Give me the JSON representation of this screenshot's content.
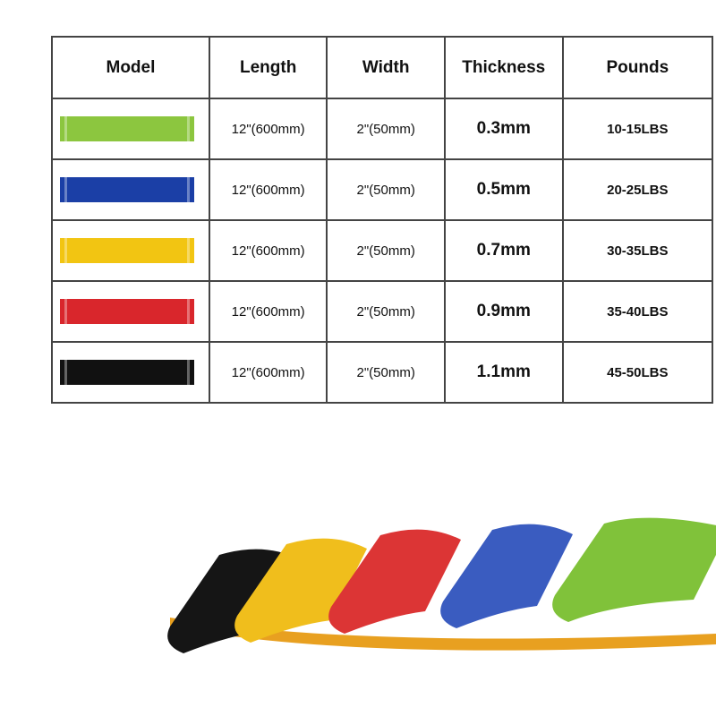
{
  "table": {
    "headers": [
      "Model",
      "Length",
      "Width",
      "Thickness",
      "Pounds"
    ],
    "rows": [
      {
        "color": "#8cc63f",
        "length": "12\"(600mm)",
        "width": "2\"(50mm)",
        "thickness": "0.3mm",
        "pounds": "10-15LBS"
      },
      {
        "color": "#1b3fa6",
        "length": "12\"(600mm)",
        "width": "2\"(50mm)",
        "thickness": "0.5mm",
        "pounds": "20-25LBS"
      },
      {
        "color": "#f2c512",
        "length": "12\"(600mm)",
        "width": "2\"(50mm)",
        "thickness": "0.7mm",
        "pounds": "30-35LBS"
      },
      {
        "color": "#d9262c",
        "length": "12\"(600mm)",
        "width": "2\"(50mm)",
        "thickness": "0.9mm",
        "pounds": "35-40LBS"
      },
      {
        "color": "#111111",
        "length": "12\"(600mm)",
        "width": "2\"(50mm)",
        "thickness": "1.1mm",
        "pounds": "45-50LBS"
      }
    ]
  },
  "photo": {
    "band_colors": [
      "#151515",
      "#f0be1c",
      "#dc3535",
      "#3a5cc0",
      "#80c23a"
    ]
  }
}
